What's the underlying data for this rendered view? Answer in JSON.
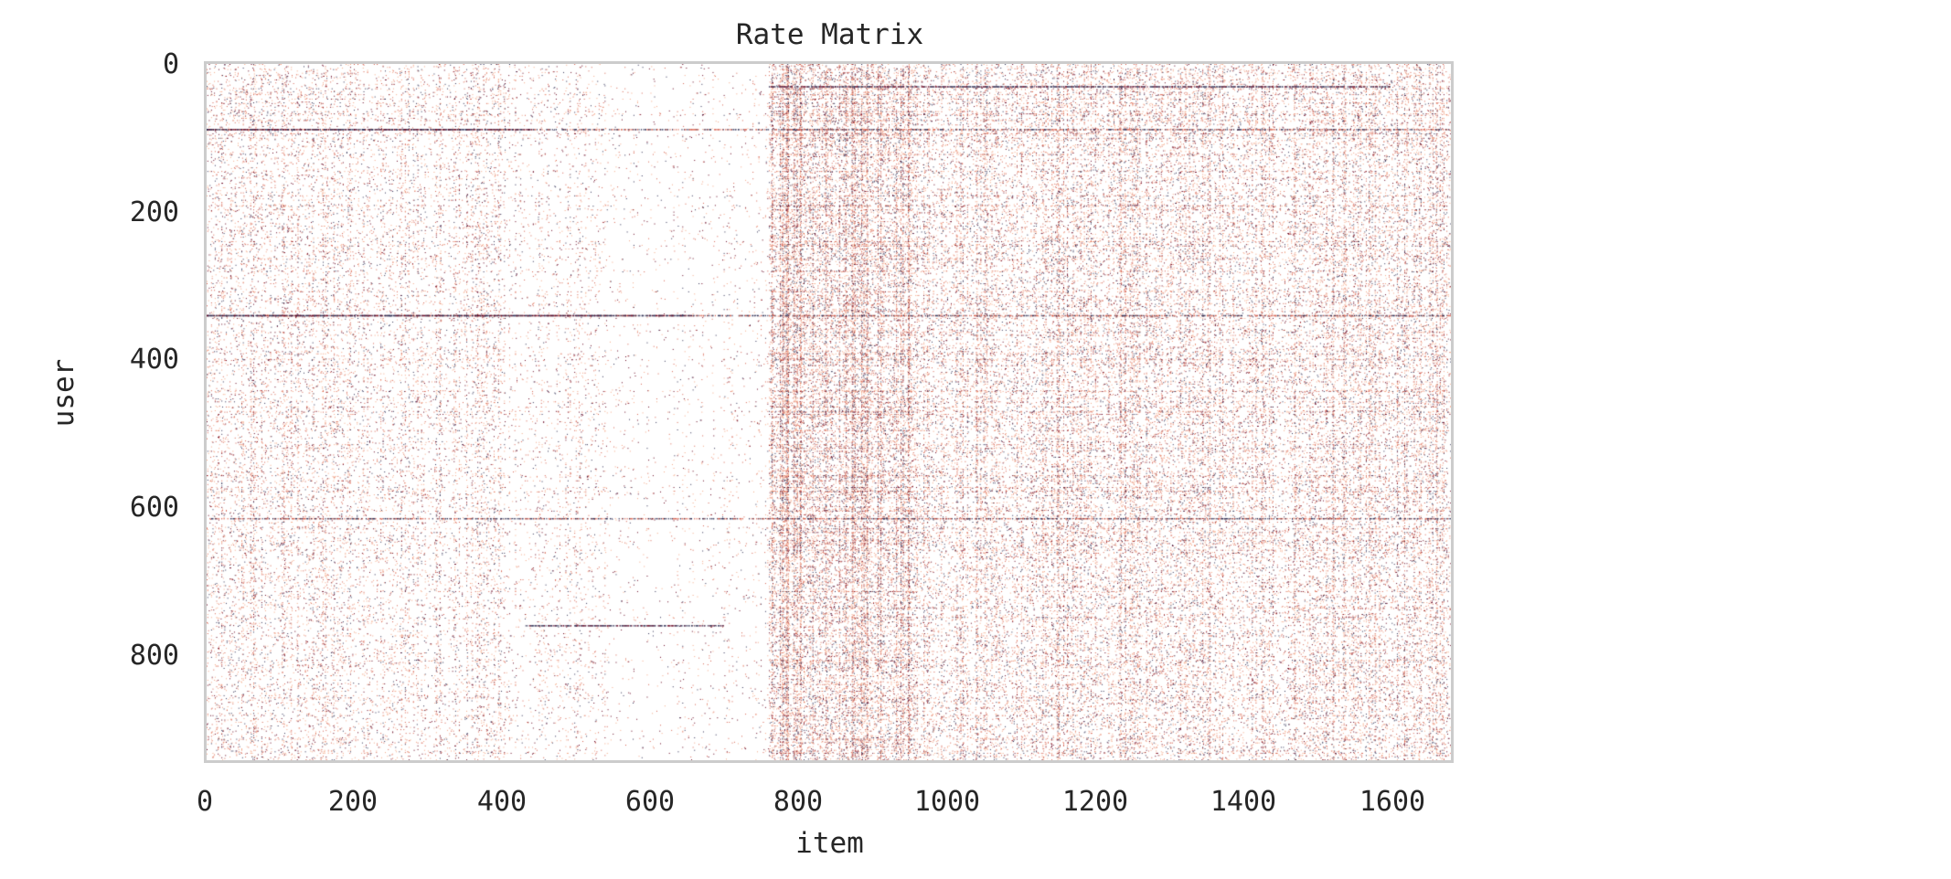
{
  "chart_data": {
    "type": "heatmap",
    "title": "Rate Matrix",
    "xlabel": "item",
    "ylabel": "user",
    "xlim": [
      0,
      1682
    ],
    "ylim": [
      943,
      0
    ],
    "x_ticks": [
      "0",
      "200",
      "400",
      "600",
      "800",
      "1000",
      "1200",
      "1400",
      "1600"
    ],
    "y_ticks": [
      "0",
      "200",
      "400",
      "600",
      "800"
    ],
    "grid": false,
    "colors": {
      "low": "#f4a582",
      "mid": "#d6604d",
      "high": "#67001f",
      "top": "#2d2d52",
      "frame": "#cccccc"
    },
    "density_profile": [
      {
        "x_range": [
          0,
          200
        ],
        "density": 0.12
      },
      {
        "x_range": [
          200,
          400
        ],
        "density": 0.09
      },
      {
        "x_range": [
          400,
          540
        ],
        "density": 0.05
      },
      {
        "x_range": [
          540,
          760
        ],
        "density": 0.02
      },
      {
        "x_range": [
          760,
          960
        ],
        "density": 0.3
      },
      {
        "x_range": [
          960,
          1682
        ],
        "density": 0.17
      }
    ],
    "dense_rows": [
      88,
      340,
      615
    ],
    "dense_row_segments": [
      {
        "row": 30,
        "x_range": [
          760,
          1600
        ]
      },
      {
        "row": 88,
        "x_range": [
          0,
          440
        ]
      },
      {
        "row": 340,
        "x_range": [
          0,
          660
        ]
      },
      {
        "row": 760,
        "x_range": [
          430,
          700
        ]
      }
    ]
  }
}
